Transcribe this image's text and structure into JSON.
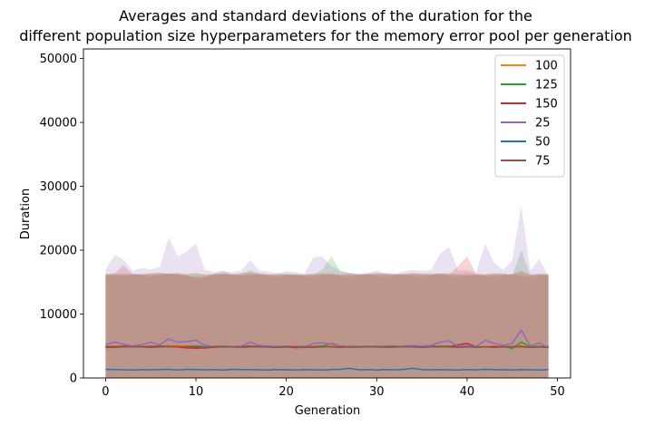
{
  "chart_data": {
    "type": "line",
    "title_line1": "Averages and standard deviations of the duration for the",
    "title_line2": "different population size hyperparameters for the memory error pool per generation",
    "xlabel": "Generation",
    "ylabel": "Duration",
    "xlim": [
      -2.45,
      51.45
    ],
    "ylim": [
      0,
      51500
    ],
    "xticks": [
      0,
      10,
      20,
      30,
      40,
      50
    ],
    "yticks": [
      0,
      10000,
      20000,
      30000,
      40000,
      50000
    ],
    "legend_position": "top-right",
    "grid": false,
    "x": [
      0,
      1,
      2,
      3,
      4,
      5,
      6,
      7,
      8,
      9,
      10,
      11,
      12,
      13,
      14,
      15,
      16,
      17,
      18,
      19,
      20,
      21,
      22,
      23,
      24,
      25,
      26,
      27,
      28,
      29,
      30,
      31,
      32,
      33,
      34,
      35,
      36,
      37,
      38,
      39,
      40,
      41,
      42,
      43,
      44,
      45,
      46,
      47,
      48,
      49
    ],
    "series": [
      {
        "name": "100",
        "color": "#ff7f0e",
        "mean": [
          4900,
          5000,
          4950,
          4900,
          5000,
          4950,
          4900,
          5000,
          5100,
          5000,
          5050,
          4900,
          4950,
          4900,
          5000,
          4900,
          4950,
          5000,
          4900,
          4950,
          4900,
          4950,
          4900,
          5000,
          4950,
          5000,
          4950,
          4900,
          4950,
          4900,
          4950,
          4900,
          4950,
          4900,
          4950,
          5000,
          4900,
          5000,
          4950,
          4900,
          5000,
          4950,
          4900,
          5000,
          4950,
          4900,
          5000,
          4900,
          4950,
          4900
        ],
        "upper": [
          16200,
          16300,
          16200,
          16100,
          16300,
          16200,
          16300,
          16400,
          16500,
          16300,
          16400,
          16200,
          16300,
          16200,
          16300,
          16200,
          16400,
          16300,
          16200,
          16300,
          16200,
          16300,
          16100,
          16400,
          16300,
          16500,
          16300,
          16200,
          16300,
          16200,
          16300,
          16200,
          16300,
          16200,
          16300,
          16400,
          16200,
          16400,
          16300,
          16200,
          16500,
          16300,
          16200,
          16400,
          16300,
          16200,
          16500,
          16200,
          16300,
          16200
        ]
      },
      {
        "name": "125",
        "color": "#2ca02c",
        "mean": [
          4950,
          4900,
          5000,
          4950,
          4900,
          4950,
          5000,
          4950,
          4900,
          4950,
          5000,
          4900,
          4950,
          5000,
          4900,
          4950,
          5000,
          4950,
          4900,
          4950,
          5000,
          4900,
          4950,
          4900,
          5000,
          5400,
          5000,
          4950,
          4900,
          4950,
          4900,
          5000,
          4950,
          4900,
          4950,
          4900,
          5000,
          4950,
          5000,
          4900,
          4850,
          4800,
          4850,
          4900,
          4950,
          4600,
          5600,
          4900,
          4950,
          4900
        ],
        "upper": [
          16300,
          16200,
          16400,
          16300,
          16200,
          16300,
          16400,
          16300,
          16200,
          16300,
          16400,
          16200,
          16300,
          16800,
          16200,
          16300,
          16900,
          16400,
          16200,
          16300,
          16400,
          16200,
          16300,
          16200,
          17000,
          19000,
          16700,
          16400,
          16200,
          16300,
          16200,
          16400,
          16300,
          16200,
          16300,
          16200,
          16400,
          16300,
          16400,
          16200,
          16100,
          16000,
          16100,
          16200,
          16400,
          16000,
          20000,
          16200,
          16300,
          16200
        ]
      },
      {
        "name": "150",
        "color": "#d62728",
        "mean": [
          4850,
          4900,
          4950,
          4900,
          4850,
          4900,
          4950,
          4900,
          4850,
          4700,
          4650,
          4700,
          4800,
          4900,
          4850,
          4900,
          4950,
          4900,
          4850,
          4800,
          4850,
          4750,
          4800,
          4850,
          4900,
          4850,
          4800,
          4900,
          4850,
          4900,
          4950,
          4900,
          4850,
          4900,
          4950,
          4900,
          4850,
          4900,
          4850,
          5200,
          5400,
          4900,
          4850,
          4900,
          4850,
          4900,
          4950,
          4800,
          4850,
          4900
        ],
        "upper": [
          16200,
          16400,
          17600,
          16300,
          16200,
          16400,
          16500,
          16300,
          16200,
          16000,
          15900,
          16000,
          16200,
          16300,
          16200,
          16400,
          16500,
          16300,
          16200,
          16100,
          16200,
          16000,
          16100,
          16200,
          16400,
          16200,
          16100,
          16300,
          16200,
          16300,
          16500,
          16300,
          16200,
          16300,
          16500,
          16300,
          16200,
          16400,
          16200,
          17500,
          19000,
          16300,
          16200,
          16400,
          16200,
          16300,
          16800,
          16100,
          16200,
          16300
        ],
        "lower": [
          0,
          0,
          0,
          0,
          0,
          0,
          0,
          0,
          0,
          0,
          0,
          0,
          0,
          0,
          0,
          0,
          0,
          0,
          0,
          0,
          0,
          0,
          0,
          0,
          0,
          0,
          0,
          0,
          0,
          0,
          0,
          0,
          0,
          0,
          0,
          0,
          0,
          0,
          0,
          0,
          0,
          0,
          0,
          0,
          0,
          0,
          0,
          0,
          0,
          0
        ]
      },
      {
        "name": "25",
        "color": "#9467bd",
        "mean": [
          5200,
          5600,
          5300,
          5000,
          5200,
          5600,
          5200,
          6100,
          5600,
          5700,
          5900,
          5100,
          4900,
          5000,
          4900,
          5000,
          5600,
          5100,
          5000,
          4900,
          5000,
          4900,
          4800,
          5400,
          5500,
          5300,
          5000,
          4900,
          4800,
          4900,
          5000,
          4900,
          4800,
          5000,
          5100,
          5000,
          5100,
          5600,
          5800,
          5000,
          5100,
          4900,
          5900,
          5400,
          5100,
          5400,
          7500,
          5000,
          5500,
          4700
        ],
        "upper": [
          17000,
          19300,
          18500,
          16800,
          17200,
          17000,
          17400,
          22000,
          19000,
          19800,
          21000,
          16900,
          16600,
          16700,
          16600,
          16800,
          18500,
          16800,
          16700,
          16400,
          16700,
          16600,
          16300,
          18900,
          19000,
          17500,
          16800,
          16500,
          16300,
          16500,
          16800,
          16400,
          16300,
          16700,
          16900,
          16800,
          16900,
          19400,
          20500,
          16800,
          16900,
          16500,
          21000,
          18000,
          16900,
          18400,
          27000,
          16800,
          18600,
          16000
        ]
      },
      {
        "name": "50",
        "color": "#1f77b4",
        "mean": [
          1350,
          1300,
          1280,
          1250,
          1300,
          1280,
          1320,
          1350,
          1250,
          1350,
          1300,
          1280,
          1300,
          1250,
          1350,
          1300,
          1300,
          1280,
          1250,
          1300,
          1280,
          1250,
          1300,
          1280,
          1250,
          1300,
          1350,
          1500,
          1280,
          1300,
          1250,
          1300,
          1280,
          1350,
          1500,
          1300,
          1280,
          1300,
          1280,
          1250,
          1300,
          1280,
          1350,
          1300,
          1280,
          1250,
          1300,
          1280,
          1250,
          1300
        ]
      },
      {
        "name": "75",
        "color": "#8c564b",
        "mean": [
          4750,
          4800,
          4850,
          4900,
          4850,
          4800,
          4850,
          4900,
          4950,
          4900,
          4850,
          4800,
          4850,
          4900,
          4850,
          4800,
          4850,
          4900,
          4850,
          4800,
          4850,
          4900,
          4850,
          4800,
          4850,
          4900,
          4850,
          4800,
          4850,
          4900,
          4850,
          4800,
          4850,
          4900,
          4850,
          4800,
          4850,
          4900,
          4850,
          4800,
          4850,
          4900,
          4850,
          4800,
          4850,
          4900,
          4850,
          4800,
          4850,
          4750
        ],
        "upper": [
          16000,
          16100,
          16000,
          16200,
          16100,
          15900,
          16100,
          16300,
          16400,
          16000,
          15600,
          15700,
          16200,
          16300,
          16100,
          16000,
          16100,
          16200,
          16000,
          15900,
          16100,
          16200,
          16000,
          15900,
          16100,
          16200,
          16000,
          15900,
          16100,
          16200,
          16000,
          15900,
          16100,
          16200,
          16000,
          15900,
          16100,
          16200,
          16000,
          15900,
          16100,
          16200,
          16000,
          15900,
          16100,
          16200,
          16000,
          15900,
          16100,
          16000
        ]
      }
    ]
  }
}
